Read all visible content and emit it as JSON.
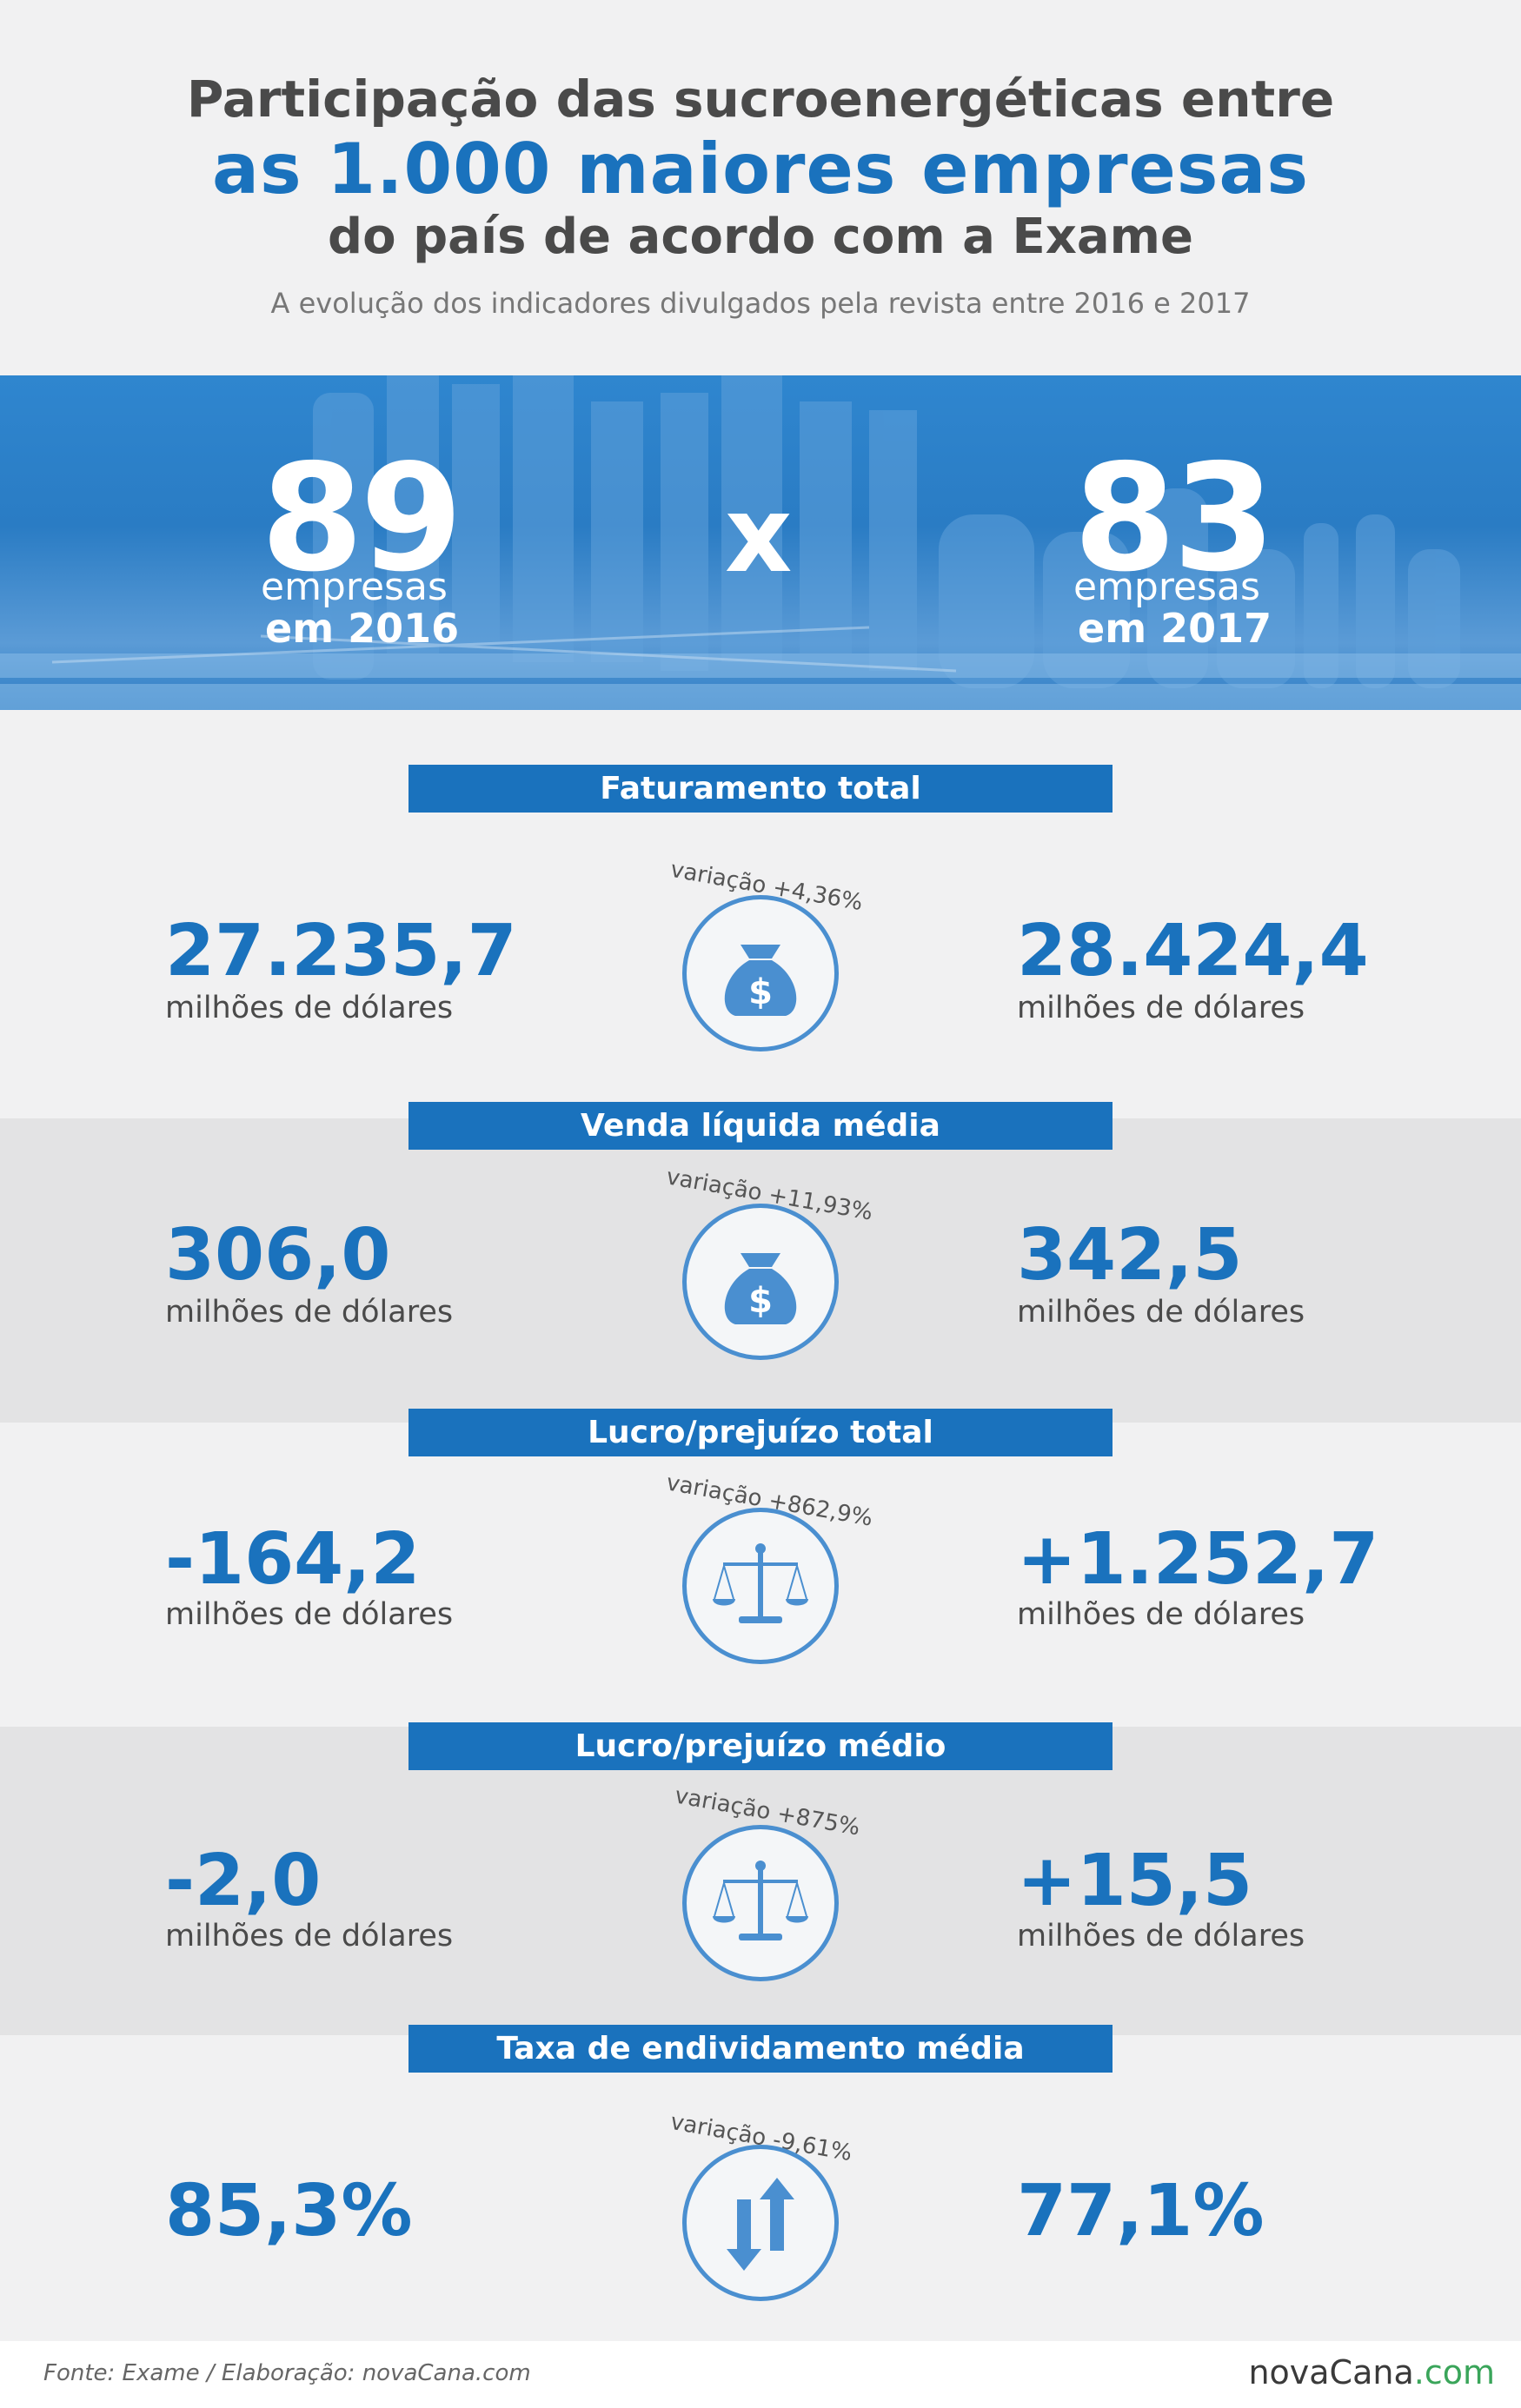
{
  "header": {
    "title_line1": "Participação das sucroenergéticas entre",
    "title_line2": "as 1.000 maiores empresas",
    "title_line3": "do país de acordo com a Exame",
    "subtitle": "A evolução dos indicadores divulgados pela revista entre 2016 e 2017"
  },
  "banner": {
    "left_number": "89",
    "left_label1": "empresas",
    "left_label2": "em 2016",
    "separator": "x",
    "right_number": "83",
    "right_label1": "empresas",
    "right_label2": "em 2017"
  },
  "sections": [
    {
      "title": "Faturamento total",
      "left_value": "27.235,7",
      "left_unit": "milhões de dólares",
      "right_value": "28.424,4",
      "right_unit": "milhões de dólares",
      "variation": "variação +4,36%",
      "icon": "money-bag-icon"
    },
    {
      "title": "Venda líquida média",
      "left_value": "306,0",
      "left_unit": "milhões de dólares",
      "right_value": "342,5",
      "right_unit": "milhões de dólares",
      "variation": "variação +11,93%",
      "icon": "money-bag-icon"
    },
    {
      "title": "Lucro/prejuízo total",
      "left_value": "-164,2",
      "left_unit": "milhões de dólares",
      "right_value": "+1.252,7",
      "right_unit": "milhões de dólares",
      "variation": "variação +862,9%",
      "icon": "scale-icon"
    },
    {
      "title": "Lucro/prejuízo médio",
      "left_value": "-2,0",
      "left_unit": "milhões de dólares",
      "right_value": "+15,5",
      "right_unit": "milhões de dólares",
      "variation": "variação +875%",
      "icon": "scale-icon"
    },
    {
      "title": "Taxa de endividamento média",
      "left_value": "85,3%",
      "left_unit": "",
      "right_value": "77,1%",
      "right_unit": "",
      "variation": "variação -9,61%",
      "icon": "arrows-up-down-icon"
    }
  ],
  "footer": {
    "source": "Fonte: Exame / Elaboração: novaCana.com",
    "logo_main": "novaCana",
    "logo_suffix": ".com"
  },
  "colors": {
    "accent": "#1a72bd",
    "background": "#f1f1f2",
    "band": "#e3e3e4",
    "text": "#4a4a4a"
  }
}
